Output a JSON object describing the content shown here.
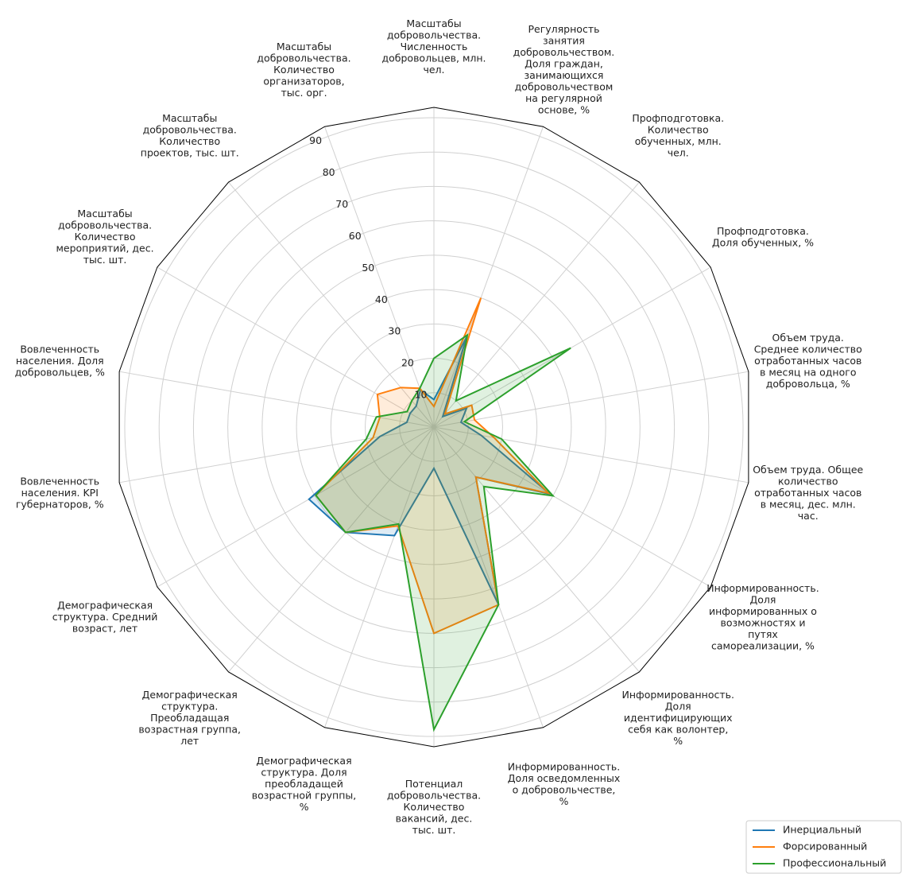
{
  "chart_data": {
    "type": "radar",
    "categories": [
      "Масштабы\nдобровольчества.\nЧисленность\nдобровольцев, млн.\nчел.",
      "Регулярность\nзанятия\nдобровольчеством.\nДоля граждан,\nзанимающихся\nдобровольчеством\nна регулярной\nоснове, %",
      "Профподготовка.\nКоличество\nобученных, млн.\nчел.",
      "Профподготовка.\nДоля обученных, %",
      "Объем труда.\nСреднее количество\nотработанных часов\nв месяц на одного\nдобровольца, %",
      "Объем труда. Общее\nколичество\nотработанных часов\nв месяц, дес. млн.\nчас.",
      "Информированность.\nДоля\nинформированных о\nвозможностях и\nпутях\nсамореализации, %",
      "Информированность.\nДоля\nидентифицирующих\nсебя как волонтер,\n%",
      "Информированность.\nДоля осведомленных\nо добровольчестве,\n%",
      "Потенциал\nдобровольчества.\nКоличество\nвакансий, дес.\nтыс. шт.",
      "Демографическая\nструктура. Доля\nпреобладащей\nвозрастной группы,\n%",
      "Демографическая\nструктура.\nПреобладащая\nвозрастная группа,\nлет",
      "Демографическая\nструктура. Средний\nвозраст, лет",
      "Вовлеченность\nнаселения. KPI\nгубернаторов, %",
      "Вовлеченность\nнаселения. Доля\nдобровольцев, %",
      "Масштабы\nдобровольчества.\nКоличество\nмероприятий, дес.\nтыс. шт.",
      "Масштабы\nдобровольчества.\nКоличество\nпроектов, тыс. шт.",
      "Масштабы\nдобровольчества.\nКоличество\nорганизаторов,\nтыс. орг."
    ],
    "series": [
      {
        "name": "Инерциальный",
        "color": "#1f77b4",
        "values": [
          8,
          28,
          4,
          11,
          8,
          14,
          39,
          19,
          55,
          12,
          33.6,
          40,
          42,
          16,
          8,
          8,
          8,
          11.5
        ]
      },
      {
        "name": "Форсированный",
        "color": "#ff7f0e",
        "values": [
          6,
          40,
          5,
          12.7,
          12,
          17.8,
          38.5,
          19,
          55,
          60,
          30.6,
          40,
          39.7,
          18,
          16,
          19,
          15,
          12
        ]
      },
      {
        "name": "Профессиональный",
        "color": "#2ca02c",
        "values": [
          20,
          28.5,
          10,
          46,
          9,
          20,
          40,
          22.6,
          55,
          88,
          30,
          40,
          39.7,
          20,
          17,
          9,
          10,
          12
        ]
      }
    ],
    "ylim": [
      0,
      93
    ],
    "yticks": [
      10,
      20,
      30,
      40,
      50,
      60,
      70,
      80,
      90
    ],
    "grid": true,
    "legend": "lower right"
  }
}
